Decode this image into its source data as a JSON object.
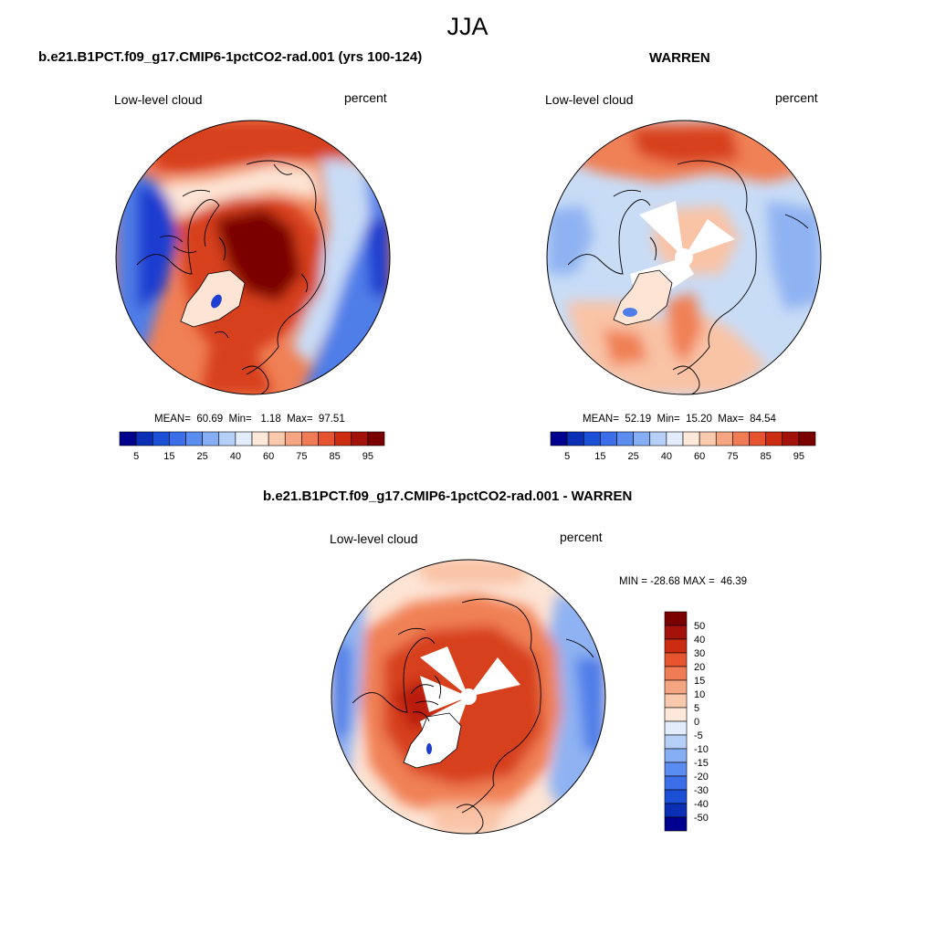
{
  "figure": {
    "title": "JJA"
  },
  "panels": [
    {
      "title": "b.e21.B1PCT.f09_g17.CMIP6-1pctCO2-rad.001 (yrs 100-124)",
      "left_label": "Low-level cloud",
      "right_label": "percent",
      "stats": "MEAN=  60.69  Min=   1.18  Max=  97.51"
    },
    {
      "title": "WARREN",
      "left_label": "Low-level cloud",
      "right_label": "percent",
      "stats": "MEAN=  52.19  Min=  15.20  Max=  84.54"
    },
    {
      "title": "b.e21.B1PCT.f09_g17.CMIP6-1pctCO2-rad.001 - WARREN",
      "left_label": "Low-level cloud",
      "right_label": "percent",
      "stats": "MIN = -28.68 MAX =  46.39"
    }
  ],
  "colorbar_main": {
    "colors": [
      "#00008f",
      "#0a2fb5",
      "#1a4fd6",
      "#3b6ee8",
      "#5b8cf0",
      "#86aef5",
      "#b6cff7",
      "#e2ecfb",
      "#fde8da",
      "#f9c9ad",
      "#f5a582",
      "#f07c56",
      "#e5532f",
      "#cc2d12",
      "#a3120a",
      "#7a0000"
    ],
    "labels": [
      "5",
      "15",
      "25",
      "40",
      "60",
      "75",
      "85",
      "95"
    ]
  },
  "colorbar_diff": {
    "colors": [
      "#7a0000",
      "#a3120a",
      "#cc2d12",
      "#e5532f",
      "#f07c56",
      "#f5a582",
      "#f9c9ad",
      "#fde8da",
      "#e2ecfb",
      "#b6cff7",
      "#86aef5",
      "#5b8cf0",
      "#3b6ee8",
      "#1a4fd6",
      "#0a2fb5",
      "#00008f"
    ],
    "labels": [
      "50",
      "40",
      "30",
      "20",
      "15",
      "10",
      "5",
      "0",
      "-5",
      "-10",
      "-15",
      "-20",
      "-30",
      "-40",
      "-50"
    ]
  },
  "colors": {
    "deep_red": "#7a0000",
    "red": "#d7401d",
    "orange": "#f08055",
    "peach": "#f9c3a6",
    "pale": "#fde4d5",
    "light_blue": "#c9dcf6",
    "mid_blue": "#8fb2f2",
    "blue": "#4f7ee8",
    "deep_blue": "#1d3ed0",
    "land_mask": "#ffffff"
  }
}
